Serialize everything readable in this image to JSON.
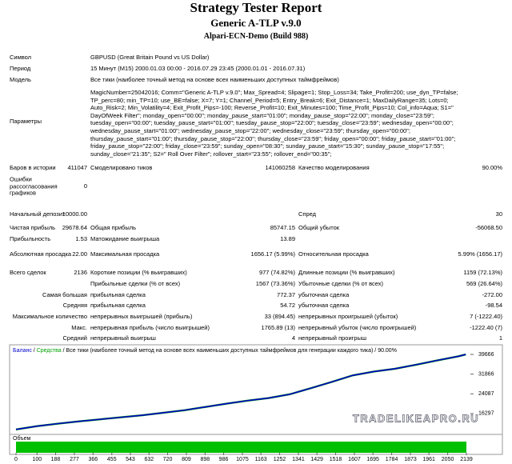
{
  "header": {
    "title": "Strategy Tester Report",
    "subtitle": "Generic A-TLP v.9.0",
    "server": "Alpari-ECN-Demo (Build 988)"
  },
  "info": [
    [
      "Символ",
      "GBPUSD (Great Britain Pound vs US Dollar)"
    ],
    [
      "Период",
      "15 Минут (M15)  2000.01.03 00:00 - 2016.07.29 23:45 (2000.01.01 - 2016.07.31)"
    ],
    [
      "Модель",
      "Все тики (наиболее точный метод на основе всех наименьших доступных таймфреймов)"
    ]
  ],
  "parameters": {
    "label": "Параметры",
    "lines": [
      "MagicNumber=25042016; Comm=\"Generic A-TLP v.9.0\"; Max_Spread=4; Slipage=1; Stop_Loss=34; Take_Profit=200; use_dyn_TP=false;",
      "TP_perc=80; min_TP=10; use_BE=false; X=7; Y=1; Channel_Period=5; Entry_Break=6; Exit_Distance=1; MaxDailyRange=35; Lots=0;",
      "Auto_Risk=2; Min_Volatility=4; Exit_Profit_Pips=-100; Reverse_Profit=10; Exit_Minutes=100; Time_Profit_Pips=10; Col_info=Aqua; S1=\"",
      "DayOfWeek Filter\"; monday_open=\"00:00\"; monday_pause_start=\"01:00\"; monday_pause_stop=\"22:00\"; monday_close=\"23:59\";",
      "tuesday_open=\"00:00\"; tuesday_pause_start=\"01:00\"; tuesday_pause_stop=\"22:00\"; tuesday_close=\"23:59\"; wednesday_open=\"00:00\";",
      "wednesday_pause_start=\"01:00\"; wednesday_pause_stop=\"22:00\"; wednesday_close=\"23:59\"; thursday_open=\"00:00\";",
      "thursday_pause_start=\"01:00\"; thursday_pause_stop=\"22:00\"; thursday_close=\"23:59\"; friday_open=\"00:00\"; friday_pause_start=\"01:00\";",
      "friday_pause_stop=\"22:00\"; friday_close=\"23:59\"; sunday_open=\"08:30\"; sunday_pause_start=\"15:30\"; sunday_pause_stop=\"17:55\";",
      "sunday_close=\"21:35\"; S2=\" Roll Over Filter\"; rollover_start=\"23:55\"; rollover_end=\"00:35\";"
    ]
  },
  "stats": [
    [
      "Баров в истории",
      "411047",
      "Смоделировано тиков",
      "141060258",
      "Качество моделирования",
      "90.00%"
    ],
    [
      "Ошибки рассогласования графиков",
      "0"
    ],
    [
      "Начальный депозит",
      "10000.00",
      "Спред",
      "30"
    ],
    [
      "Чистая прибыль",
      "29678.64",
      "Общая прибыль",
      "85747.15",
      "Общий убыток",
      "-56068.50"
    ],
    [
      "Прибыльность",
      "1.53",
      "Матожидание выигрыша",
      "13.89"
    ],
    [
      "Абсолютная просадка",
      "22.00",
      "Максимальная просадка",
      "1656.17 (5.99%)",
      "Относительная просадка",
      "5.99% (1656.17)"
    ],
    [
      "Всего сделок",
      "2136",
      "Короткие позиции (% выигравших)",
      "977 (74.82%)",
      "Длинные позиции (% выигравших)",
      "1159 (72.13%)"
    ],
    [
      "Прибыльные сделки (% от всех)",
      "1567 (73.36%)",
      "Убыточные сделки (% от всех)",
      "569 (26.64%)"
    ],
    [
      "Самая большая",
      "прибыльная сделка",
      "772.37",
      "убыточная сделка",
      "-272.00"
    ],
    [
      "Средняя",
      "прибыльная сделка",
      "54.72",
      "убыточная сделка",
      "-98.54"
    ],
    [
      "Максимальное количество",
      "непрерывных выигрышей (прибыль)",
      "33 (894.45)",
      "непрерывных проигрышей (убыток)",
      "7 (-1222.40)"
    ],
    [
      "Макс.",
      "непрерывная прибыль (число выигрышей)",
      "1765.89 (13)",
      "непрерывный убыток (число проигрышей)",
      "-1222.40 (7)"
    ],
    [
      "Средний",
      "непрерывный выигрыш",
      "4",
      "непрерывный проигрыш",
      "1"
    ]
  ],
  "chart_data": {
    "type": "line",
    "legend_note": "Все тики (наиболее точный метод на основе всех наименьших доступных таймфреймов для генерации каждого тика)",
    "quality": "90.00%",
    "separator": " / ",
    "volume_label": "Объем",
    "watermark": "TRADELIKEAPRO.RU",
    "x": [
      0,
      100,
      200,
      300,
      400,
      500,
      600,
      700,
      800,
      900,
      1000,
      1100,
      1200,
      1300,
      1400,
      1500,
      1600,
      1700,
      1800,
      1900,
      2000,
      2100,
      2136
    ],
    "series": [
      {
        "name": "Средства",
        "color": "#00a000",
        "values": [
          10000,
          11300,
          12300,
          13200,
          14000,
          14800,
          15600,
          16600,
          17600,
          18900,
          20200,
          21400,
          22400,
          23900,
          26300,
          28800,
          31400,
          32900,
          34000,
          35600,
          37300,
          38900,
          39666
        ]
      },
      {
        "name": "Баланс",
        "color": "#0000c8",
        "values": [
          10000,
          11300,
          12300,
          13200,
          14000,
          14800,
          15600,
          16600,
          17600,
          18900,
          20200,
          21400,
          22400,
          23900,
          26300,
          28800,
          31400,
          32900,
          34000,
          35600,
          37300,
          38900,
          39666
        ]
      }
    ],
    "xlim": [
      0,
      2139
    ],
    "ylim": [
      8980,
      43160
    ],
    "xticks": [
      0,
      100,
      188,
      277,
      366,
      455,
      543,
      632,
      720,
      809,
      898,
      986,
      1075,
      1163,
      1252,
      1341,
      1429,
      1518,
      1607,
      1695,
      1784,
      1873,
      1961,
      2050,
      2139
    ],
    "yticks": [
      16297,
      24087,
      31866,
      39666
    ]
  }
}
